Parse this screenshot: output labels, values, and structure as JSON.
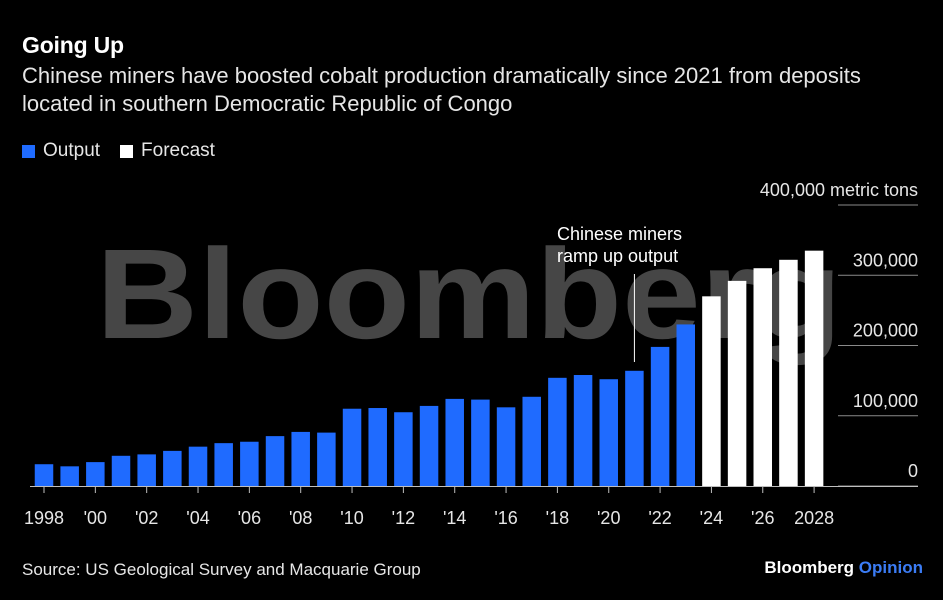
{
  "title": "Going Up",
  "subtitle": "Chinese miners have boosted cobalt production dramatically since 2021 from deposits located in southern Democratic Republic of Congo",
  "legend": [
    {
      "label": "Output",
      "color": "#1f6bff"
    },
    {
      "label": "Forecast",
      "color": "#ffffff"
    }
  ],
  "source": "Source: US Geological Survey and Macquarie Group",
  "brand": {
    "name": "Bloomberg",
    "accent": "Opinion"
  },
  "watermark": "Bloomberg",
  "chart_data": {
    "type": "bar",
    "title": "Going Up",
    "xlabel": "",
    "ylabel": "metric tons",
    "ylim": [
      0,
      400000
    ],
    "y_ticks": [
      0,
      100000,
      200000,
      300000,
      400000
    ],
    "y_tick_labels": [
      "0",
      "100,000",
      "200,000",
      "300,000",
      "400,000 metric tons"
    ],
    "x_tick_years": [
      1998,
      2000,
      2002,
      2004,
      2006,
      2008,
      2010,
      2012,
      2014,
      2016,
      2018,
      2020,
      2022,
      2024,
      2026,
      2028
    ],
    "x_tick_labels": [
      "1998",
      "'00",
      "'02",
      "'04",
      "'06",
      "'08",
      "'10",
      "'12",
      "'14",
      "'16",
      "'18",
      "'20",
      "'22",
      "'24",
      "'26",
      "2028"
    ],
    "categories": [
      1998,
      1999,
      2000,
      2001,
      2002,
      2003,
      2004,
      2005,
      2006,
      2007,
      2008,
      2009,
      2010,
      2011,
      2012,
      2013,
      2014,
      2015,
      2016,
      2017,
      2018,
      2019,
      2020,
      2021,
      2022,
      2023,
      2024,
      2025,
      2026,
      2027,
      2028
    ],
    "series": [
      {
        "name": "Output",
        "color": "#1f6bff",
        "values": [
          31000,
          28000,
          34000,
          43000,
          45000,
          50000,
          56000,
          61000,
          63000,
          71000,
          77000,
          76000,
          110000,
          111000,
          105000,
          114000,
          124000,
          123000,
          112000,
          127000,
          154000,
          158000,
          152000,
          164000,
          198000,
          230000,
          null,
          null,
          null,
          null,
          null
        ]
      },
      {
        "name": "Forecast",
        "color": "#ffffff",
        "values": [
          null,
          null,
          null,
          null,
          null,
          null,
          null,
          null,
          null,
          null,
          null,
          null,
          null,
          null,
          null,
          null,
          null,
          null,
          null,
          null,
          null,
          null,
          null,
          null,
          null,
          null,
          270000,
          292000,
          310000,
          322000,
          335000
        ]
      }
    ],
    "annotations": [
      {
        "text": "Chinese miners",
        "x": 2021
      },
      {
        "text": "ramp up output",
        "x": 2021
      }
    ]
  }
}
